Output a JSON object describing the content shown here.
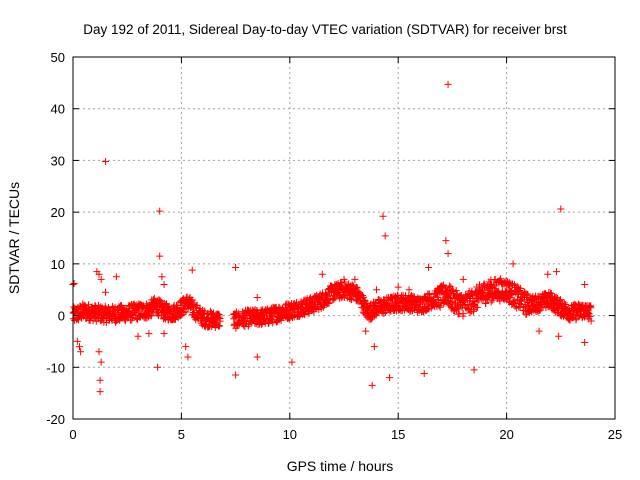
{
  "chart_data": {
    "type": "scatter",
    "title": "Day 192 of 2011, Sidereal Day-to-day VTEC variation (SDTVAR) for receiver brst",
    "xlabel": "GPS time / hours",
    "ylabel": "SDTVAR / TECUs",
    "xlim": [
      0,
      25
    ],
    "ylim": [
      -20,
      50
    ],
    "xticks": [
      0,
      5,
      10,
      15,
      20,
      25
    ],
    "yticks": [
      -20,
      -10,
      0,
      10,
      20,
      30,
      40,
      50
    ],
    "grid": true,
    "marker": "+",
    "color": "#ff0000",
    "series": [
      {
        "name": "SDTVAR",
        "baseline": [
          [
            0.0,
            0.0
          ],
          [
            0.5,
            0.8
          ],
          [
            1.0,
            0.5
          ],
          [
            1.5,
            0.2
          ],
          [
            2.0,
            0.3
          ],
          [
            2.5,
            0.5
          ],
          [
            3.0,
            0.8
          ],
          [
            3.5,
            1.0
          ],
          [
            3.8,
            2.0
          ],
          [
            4.2,
            0.8
          ],
          [
            4.6,
            0.5
          ],
          [
            5.0,
            1.5
          ],
          [
            5.3,
            2.5
          ],
          [
            5.6,
            1.0
          ],
          [
            6.0,
            -0.5
          ],
          [
            6.5,
            -0.8
          ],
          [
            6.8,
            -0.8
          ],
          [
            7.4,
            -1.0
          ],
          [
            8.0,
            -0.5
          ],
          [
            9.0,
            -0.2
          ],
          [
            9.5,
            0.5
          ],
          [
            10.0,
            1.0
          ],
          [
            10.5,
            1.5
          ],
          [
            11.0,
            2.0
          ],
          [
            11.5,
            3.0
          ],
          [
            12.0,
            4.5
          ],
          [
            12.5,
            5.0
          ],
          [
            13.0,
            4.5
          ],
          [
            13.3,
            3.0
          ],
          [
            13.6,
            0.5
          ],
          [
            14.0,
            1.5
          ],
          [
            14.5,
            2.0
          ],
          [
            15.0,
            2.5
          ],
          [
            15.5,
            2.5
          ],
          [
            16.0,
            2.0
          ],
          [
            16.5,
            3.0
          ],
          [
            17.0,
            3.5
          ],
          [
            17.2,
            4.5
          ],
          [
            17.5,
            3.0
          ],
          [
            18.0,
            2.0
          ],
          [
            18.5,
            3.0
          ],
          [
            19.0,
            4.5
          ],
          [
            19.5,
            5.0
          ],
          [
            20.0,
            5.0
          ],
          [
            20.5,
            3.5
          ],
          [
            21.0,
            2.0
          ],
          [
            21.5,
            2.5
          ],
          [
            22.0,
            3.0
          ],
          [
            22.5,
            1.5
          ],
          [
            23.0,
            0.5
          ],
          [
            23.5,
            1.0
          ],
          [
            23.9,
            0.5
          ]
        ],
        "outliers": [
          [
            0.0,
            6.0
          ],
          [
            0.05,
            6.2
          ],
          [
            0.2,
            -5.0
          ],
          [
            0.3,
            -6.0
          ],
          [
            0.35,
            -7.0
          ],
          [
            1.1,
            8.5
          ],
          [
            1.2,
            8.0
          ],
          [
            1.3,
            7.0
          ],
          [
            1.2,
            -7.0
          ],
          [
            1.3,
            -9.0
          ],
          [
            1.25,
            -12.5
          ],
          [
            1.25,
            -14.7
          ],
          [
            1.5,
            4.5
          ],
          [
            1.5,
            29.8
          ],
          [
            2.0,
            7.5
          ],
          [
            3.0,
            -4.0
          ],
          [
            3.5,
            -3.5
          ],
          [
            3.9,
            -10.0
          ],
          [
            4.0,
            20.2
          ],
          [
            4.0,
            11.5
          ],
          [
            4.1,
            7.5
          ],
          [
            4.2,
            6.0
          ],
          [
            4.2,
            -3.5
          ],
          [
            5.2,
            -6.0
          ],
          [
            5.3,
            -8.0
          ],
          [
            5.5,
            8.8
          ],
          [
            7.5,
            -11.5
          ],
          [
            7.5,
            9.3
          ],
          [
            8.5,
            3.5
          ],
          [
            8.5,
            -8.0
          ],
          [
            10.1,
            -9.0
          ],
          [
            11.5,
            8.0
          ],
          [
            12.5,
            7.0
          ],
          [
            13.0,
            7.0
          ],
          [
            13.5,
            -3.0
          ],
          [
            13.8,
            -13.5
          ],
          [
            13.9,
            -6.0
          ],
          [
            14.0,
            5.0
          ],
          [
            14.3,
            19.2
          ],
          [
            14.4,
            15.4
          ],
          [
            14.6,
            -12.0
          ],
          [
            15.0,
            5.5
          ],
          [
            15.5,
            5.0
          ],
          [
            16.2,
            -11.2
          ],
          [
            16.4,
            9.3
          ],
          [
            17.2,
            14.5
          ],
          [
            17.3,
            44.7
          ],
          [
            17.3,
            12.0
          ],
          [
            18.0,
            7.0
          ],
          [
            18.5,
            -10.5
          ],
          [
            20.3,
            10.0
          ],
          [
            21.5,
            -3.0
          ],
          [
            21.9,
            8.0
          ],
          [
            22.3,
            8.5
          ],
          [
            22.5,
            20.6
          ],
          [
            22.4,
            -4.0
          ],
          [
            23.6,
            6.0
          ],
          [
            23.6,
            -5.2
          ]
        ]
      }
    ]
  }
}
